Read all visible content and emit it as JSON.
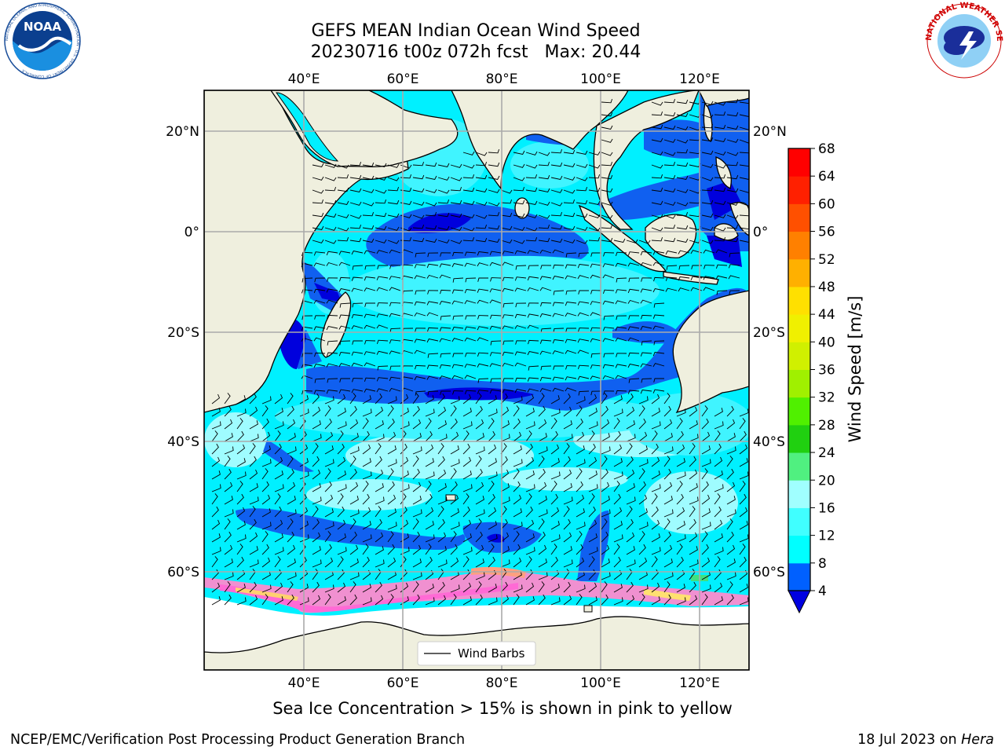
{
  "header": {
    "title_line1": "GEFS MEAN Indian Ocean Wind Speed",
    "title_line2": "20230716 t00z 072h fcst   Max: 20.44"
  },
  "logos": {
    "noaa_text": "NOAA",
    "noaa_ring_text": "NATIONAL OCEANIC AND ATMOSPHERIC ADMINISTRATION · U.S. DEPARTMENT OF COMMERCE",
    "nws_ring_text": "NATIONAL WEATHER SERVICE"
  },
  "map": {
    "lon_ticks": [
      "40°E",
      "60°E",
      "80°E",
      "100°E",
      "120°E"
    ],
    "lat_ticks_left": [
      "20°N",
      "0°",
      "20°S",
      "40°S",
      "60°S"
    ],
    "lat_ticks_right": [
      "20°N",
      "0°",
      "20°S",
      "40°S",
      "60°S"
    ],
    "legend_label": "Wind Barbs",
    "colors": {
      "land": "#efefde",
      "ice": "#ffffff"
    }
  },
  "colorbar": {
    "label": "Wind Speed [m/s]",
    "ticks": [
      "4",
      "8",
      "12",
      "16",
      "20",
      "24",
      "28",
      "32",
      "36",
      "40",
      "44",
      "48",
      "52",
      "56",
      "60",
      "64",
      "68"
    ],
    "colors": [
      "#0000e0",
      "#0060ff",
      "#00ffff",
      "#40ffff",
      "#a0ffff",
      "#50f080",
      "#20d010",
      "#50f000",
      "#a0f000",
      "#d0f000",
      "#f0f000",
      "#ffe000",
      "#ffb000",
      "#ff8000",
      "#ff5000",
      "#ff2000",
      "#ff0000"
    ]
  },
  "footer": {
    "caption": "Sea Ice Concentration > 15% is shown in pink to yellow",
    "left": "NCEP/EMC/Verification Post Processing Product Generation Branch",
    "right_date": "18 Jul 2023 on ",
    "right_host": "Hera"
  }
}
